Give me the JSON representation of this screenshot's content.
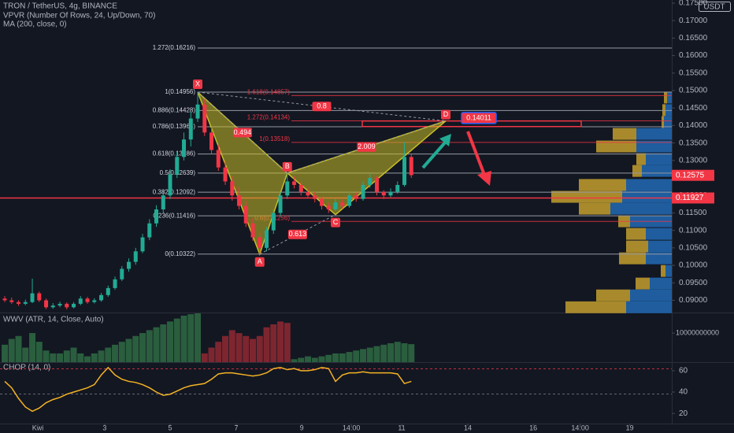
{
  "chart_data": {
    "type": "candlestick",
    "title": "TRON / TetherUS, 4g, BINANCE",
    "indicators": [
      "VPVR (Number Of Rows, 24, Up/Down, 70)",
      "MA (200, close, 0)"
    ],
    "currency": "USDT",
    "up_color": "#22ab94",
    "down_color": "#f23645",
    "xlim": [
      -0.69,
      96.8
    ],
    "xticks": [
      {
        "value": 4.8,
        "label": "Kwi"
      },
      {
        "value": 14.5,
        "label": "3"
      },
      {
        "value": 24,
        "label": "5"
      },
      {
        "value": 33.6,
        "label": "7"
      },
      {
        "value": 43.1,
        "label": "9"
      },
      {
        "value": 50.3,
        "label": "14:00"
      },
      {
        "value": 57.6,
        "label": "11"
      },
      {
        "value": 67.2,
        "label": "14"
      },
      {
        "value": 76.7,
        "label": "16"
      },
      {
        "value": 83.5,
        "label": "14:00"
      },
      {
        "value": 90.7,
        "label": "19"
      }
    ],
    "ylim": [
      0.0865,
      0.1759
    ],
    "yticks": [
      {
        "value": 0.175,
        "label": "0.17500"
      },
      {
        "value": 0.17,
        "label": "0.17000"
      },
      {
        "value": 0.165,
        "label": "0.16500"
      },
      {
        "value": 0.16,
        "label": "0.16000"
      },
      {
        "value": 0.155,
        "label": "0.15500"
      },
      {
        "value": 0.15,
        "label": "0.15000"
      },
      {
        "value": 0.145,
        "label": "0.14500"
      },
      {
        "value": 0.14,
        "label": "0.14000"
      },
      {
        "value": 0.135,
        "label": "0.13500"
      },
      {
        "value": 0.13,
        "label": "0.13000"
      },
      {
        "value": 0.125,
        "label": "0.12500"
      },
      {
        "value": 0.12,
        "label": "0.12000"
      },
      {
        "value": 0.115,
        "label": "0.11500"
      },
      {
        "value": 0.11,
        "label": "0.11000"
      },
      {
        "value": 0.105,
        "label": "0.10500"
      },
      {
        "value": 0.1,
        "label": "0.10000"
      },
      {
        "value": 0.095,
        "label": "0.09500"
      },
      {
        "value": 0.09,
        "label": "0.09000"
      }
    ],
    "candles": [
      [
        0.0905,
        0.0912,
        0.0895,
        0.09
      ],
      [
        0.09,
        0.0908,
        0.089,
        0.0895
      ],
      [
        0.0895,
        0.09,
        0.0884,
        0.089
      ],
      [
        0.089,
        0.0902,
        0.0886,
        0.0895
      ],
      [
        0.0895,
        0.0962,
        0.0892,
        0.092
      ],
      [
        0.092,
        0.0925,
        0.0895,
        0.09
      ],
      [
        0.09,
        0.0905,
        0.0875,
        0.088
      ],
      [
        0.088,
        0.0892,
        0.0876,
        0.0885
      ],
      [
        0.0885,
        0.0896,
        0.088,
        0.089
      ],
      [
        0.089,
        0.0894,
        0.0874,
        0.088
      ],
      [
        0.088,
        0.0895,
        0.0877,
        0.089
      ],
      [
        0.089,
        0.0912,
        0.0886,
        0.0905
      ],
      [
        0.0905,
        0.091,
        0.089,
        0.0895
      ],
      [
        0.0895,
        0.0906,
        0.0891,
        0.09
      ],
      [
        0.09,
        0.0921,
        0.0896,
        0.0915
      ],
      [
        0.0915,
        0.0942,
        0.091,
        0.0935
      ],
      [
        0.0935,
        0.0968,
        0.093,
        0.096
      ],
      [
        0.096,
        0.0998,
        0.0955,
        0.099
      ],
      [
        0.099,
        0.102,
        0.0982,
        0.101
      ],
      [
        0.101,
        0.105,
        0.1002,
        0.104
      ],
      [
        0.104,
        0.109,
        0.1035,
        0.108
      ],
      [
        0.108,
        0.1132,
        0.1072,
        0.112
      ],
      [
        0.112,
        0.1172,
        0.111,
        0.116
      ],
      [
        0.116,
        0.1215,
        0.115,
        0.12
      ],
      [
        0.12,
        0.1275,
        0.119,
        0.126
      ],
      [
        0.126,
        0.1325,
        0.125,
        0.131
      ],
      [
        0.131,
        0.138,
        0.13,
        0.136
      ],
      [
        0.136,
        0.144,
        0.134,
        0.142
      ],
      [
        0.142,
        0.1496,
        0.141,
        0.146
      ],
      [
        0.146,
        0.1475,
        0.137,
        0.138
      ],
      [
        0.138,
        0.1395,
        0.132,
        0.133
      ],
      [
        0.133,
        0.1345,
        0.127,
        0.128
      ],
      [
        0.128,
        0.13,
        0.123,
        0.124
      ],
      [
        0.124,
        0.1255,
        0.1185,
        0.12
      ],
      [
        0.12,
        0.1225,
        0.116,
        0.117
      ],
      [
        0.117,
        0.1185,
        0.111,
        0.112
      ],
      [
        0.112,
        0.1135,
        0.107,
        0.108
      ],
      [
        0.108,
        0.1095,
        0.1032,
        0.105
      ],
      [
        0.105,
        0.111,
        0.104,
        0.11
      ],
      [
        0.11,
        0.116,
        0.109,
        0.115
      ],
      [
        0.115,
        0.121,
        0.114,
        0.12
      ],
      [
        0.12,
        0.1264,
        0.119,
        0.124
      ],
      [
        0.124,
        0.1255,
        0.122,
        0.123
      ],
      [
        0.123,
        0.124,
        0.12,
        0.121
      ],
      [
        0.121,
        0.1222,
        0.1192,
        0.12
      ],
      [
        0.12,
        0.121,
        0.118,
        0.119
      ],
      [
        0.119,
        0.1198,
        0.116,
        0.117
      ],
      [
        0.117,
        0.118,
        0.115,
        0.116
      ],
      [
        0.116,
        0.119,
        0.1155,
        0.118
      ],
      [
        0.118,
        0.1188,
        0.1162,
        0.117
      ],
      [
        0.117,
        0.1212,
        0.1165,
        0.12
      ],
      [
        0.12,
        0.1208,
        0.1182,
        0.119
      ],
      [
        0.119,
        0.124,
        0.1185,
        0.123
      ],
      [
        0.123,
        0.1262,
        0.1222,
        0.125
      ],
      [
        0.125,
        0.1255,
        0.12,
        0.121
      ],
      [
        0.121,
        0.1215,
        0.119,
        0.12
      ],
      [
        0.12,
        0.122,
        0.1195,
        0.121
      ],
      [
        0.121,
        0.124,
        0.1205,
        0.123
      ],
      [
        0.123,
        0.1352,
        0.1225,
        0.131
      ],
      [
        0.131,
        0.1318,
        0.125,
        0.1258
      ]
    ],
    "current_price": 0.12575,
    "marked_price": 0.11927,
    "fib_levels": [
      {
        "label": "1.272(0.16216)",
        "price": 0.16216
      },
      {
        "label": "1(0.14956)",
        "price": 0.14956
      },
      {
        "label": "0.886(0.14428)",
        "price": 0.14428
      },
      {
        "label": "0.786(0.13964)",
        "price": 0.13964
      },
      {
        "label": "0.618(0.13186)",
        "price": 0.13186
      },
      {
        "label": "0.5(0.12639)",
        "price": 0.12639
      },
      {
        "label": "0.382(0.12092)",
        "price": 0.12092
      },
      {
        "label": "0.236(0.11416)",
        "price": 0.11416
      },
      {
        "label": "0(0.10322)",
        "price": 0.10322
      }
    ],
    "red_levels": [
      {
        "label": "1.618(0.14857)",
        "price": 0.14857
      },
      {
        "label": "1.272(0.14134)",
        "price": 0.14134
      },
      {
        "label": "1(0.13518)",
        "price": 0.13518
      },
      {
        "label": "0.6(0.11256)",
        "price": 0.11256
      }
    ],
    "zone": {
      "top": 0.1413,
      "bottom": 0.1397
    },
    "pattern": {
      "points": [
        {
          "label": "X",
          "x": 28,
          "price": 0.14956
        },
        {
          "label": "A",
          "x": 37,
          "price": 0.10322
        },
        {
          "label": "B",
          "x": 41,
          "price": 0.12639
        },
        {
          "label": "C",
          "x": 48,
          "price": 0.1145
        },
        {
          "label": "D",
          "x": 64,
          "price": 0.1413
        }
      ],
      "ratios": [
        "0.494",
        "0.613",
        "2.009",
        "0.8"
      ],
      "target": 0.14011
    },
    "vpvr": {
      "up_color": "#1f5d9e",
      "down_color": "#a88a2c",
      "rows": [
        {
          "price": 0.148,
          "up": 6,
          "down": 4
        },
        {
          "price": 0.1444,
          "up": 8,
          "down": 4
        },
        {
          "price": 0.141,
          "up": 10,
          "down": 3
        },
        {
          "price": 0.1376,
          "up": 45,
          "down": 30
        },
        {
          "price": 0.134,
          "up": 45,
          "down": 51
        },
        {
          "price": 0.1304,
          "up": 33,
          "down": 12
        },
        {
          "price": 0.127,
          "up": 38,
          "down": 12
        },
        {
          "price": 0.123,
          "up": 58,
          "down": 60
        },
        {
          "price": 0.1196,
          "up": 63,
          "down": 90
        },
        {
          "price": 0.1162,
          "up": 78,
          "down": 40
        },
        {
          "price": 0.1126,
          "up": 53,
          "down": 15
        },
        {
          "price": 0.109,
          "up": 33,
          "down": 25
        },
        {
          "price": 0.1054,
          "up": 30,
          "down": 28
        },
        {
          "price": 0.102,
          "up": 33,
          "down": 34
        },
        {
          "price": 0.0984,
          "up": 8,
          "down": 6
        },
        {
          "price": 0.0948,
          "up": 28,
          "down": 18
        },
        {
          "price": 0.0914,
          "up": 53,
          "down": 43
        },
        {
          "price": 0.088,
          "up": 58,
          "down": 77
        }
      ]
    },
    "volume_pane": {
      "title": "WWV (ATR, 14, Close, Auto)",
      "ylim": [
        0,
        16800000000.0
      ],
      "yticks": [
        10000000000
      ],
      "up_color": "#2a5e3e",
      "down_color": "#7d2630",
      "up_values": [
        6000000000.0,
        8000000000.0,
        9000000000.0,
        5000000000.0,
        10000000000.0,
        7000000000.0,
        4000000000.0,
        3000000000.0,
        3000000000.0,
        4000000000.0,
        5000000000.0,
        3000000000.0,
        2000000000.0,
        3000000000.0,
        4000000000.0,
        5000000000.0,
        6000000000.0,
        7000000000.0,
        8000000000.0,
        9000000000.0,
        10000000000.0,
        11000000000.0,
        12000000000.0,
        13000000000.0,
        14000000000.0,
        15000000000.0,
        16000000000.0,
        16500000000.0,
        16800000000.0,
        null,
        null,
        null,
        null,
        null,
        null,
        null,
        null,
        null,
        null,
        null,
        null,
        null,
        1000000000.0,
        1500000000.0,
        2000000000.0,
        1500000000.0,
        2000000000.0,
        2500000000.0,
        3000000000.0,
        3000000000.0,
        3500000000.0,
        4000000000.0,
        4500000000.0,
        5000000000.0,
        5500000000.0,
        6000000000.0,
        6500000000.0,
        7000000000.0,
        6500000000.0,
        6200000000.0
      ],
      "down_values": [
        null,
        null,
        null,
        null,
        null,
        null,
        null,
        null,
        null,
        null,
        null,
        null,
        null,
        null,
        null,
        null,
        null,
        null,
        null,
        null,
        null,
        null,
        null,
        null,
        null,
        null,
        null,
        null,
        null,
        3000000000.0,
        5000000000.0,
        7000000000.0,
        9000000000.0,
        11000000000.0,
        10000000000.0,
        9000000000.0,
        8000000000.0,
        9000000000.0,
        12000000000.0,
        13000000000.0,
        14000000000.0,
        13500000000.0,
        null,
        null,
        null,
        null,
        null,
        null,
        null,
        null,
        null,
        null,
        null,
        null,
        null,
        null,
        null,
        null,
        null,
        null
      ]
    },
    "chop": {
      "title": "CHOP (14, 0)",
      "color": "#f5b324",
      "ylim": [
        10.5,
        67.3
      ],
      "yticks": [
        20,
        40,
        60
      ],
      "bands": [
        38.2,
        61.8
      ],
      "values": [
        50,
        44,
        34,
        26,
        22,
        25,
        30,
        33,
        35,
        38,
        40,
        42,
        44,
        47,
        56,
        63,
        56,
        52,
        50,
        49,
        47,
        44,
        40,
        37,
        38,
        41,
        44,
        46,
        47,
        48,
        52,
        57,
        58,
        58,
        57,
        56,
        55,
        56,
        58,
        62,
        63,
        61,
        62,
        60,
        60,
        61,
        63,
        62,
        50,
        56,
        58,
        58,
        59,
        58,
        58,
        58,
        58,
        57,
        48,
        50
      ]
    }
  }
}
